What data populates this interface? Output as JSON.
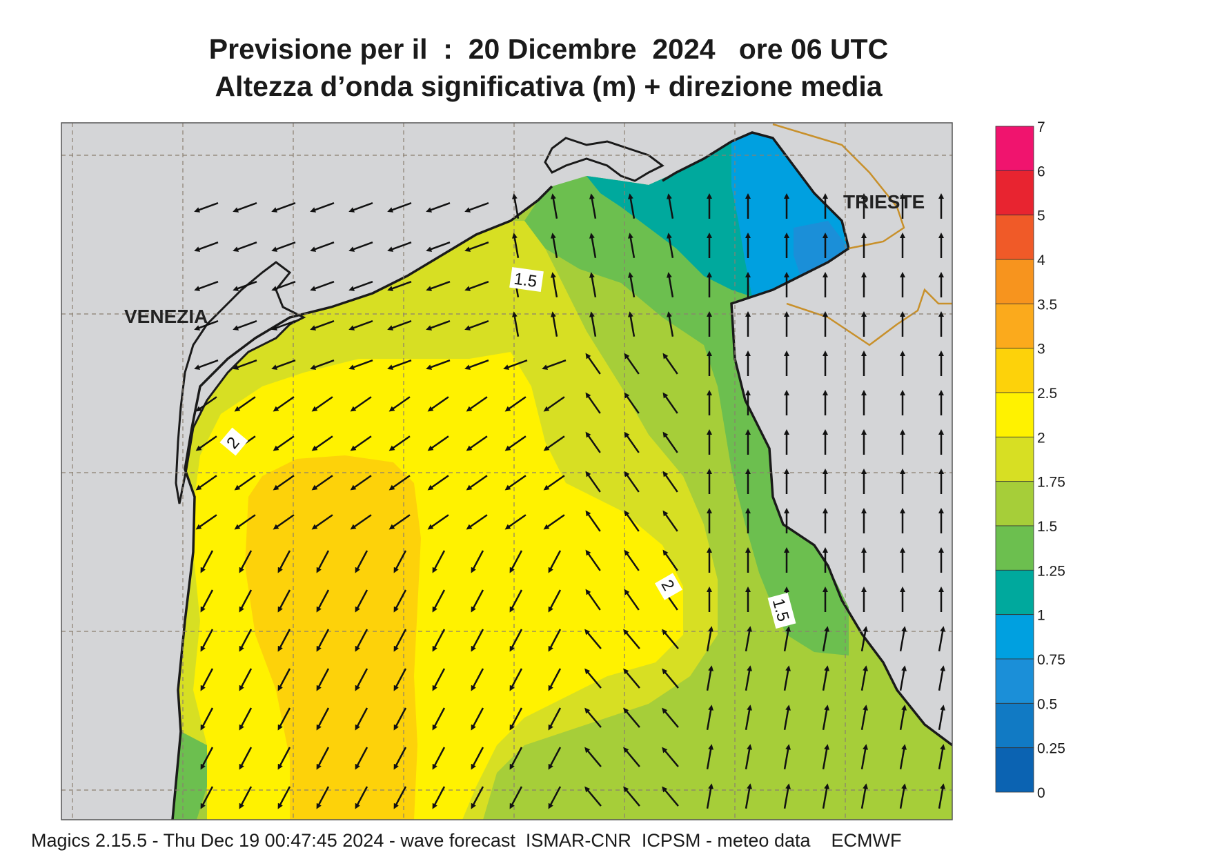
{
  "title": {
    "line1": "Previsione per il  :  20 Dicembre  2024   ore 06 UTC",
    "line2": "Altezza d’onda significativa (m) + direzione media"
  },
  "map": {
    "cities": [
      {
        "name": "VENEZIA"
      },
      {
        "name": "TRIESTE"
      }
    ],
    "contour_labels": [
      "1.5",
      "2",
      "2",
      "1.5"
    ],
    "land_color": "#d4d5d7",
    "coast_color": "#1a1a1a",
    "border_color": "#c8902a"
  },
  "colorbar": {
    "levels": [
      "7",
      "6",
      "5",
      "4",
      "3.5",
      "3",
      "2.5",
      "2",
      "1.75",
      "1.5",
      "1.25",
      "1",
      "0.75",
      "0.5",
      "0.25",
      "0"
    ],
    "colors": [
      "#f0146e",
      "#e82430",
      "#f05a28",
      "#f7941e",
      "#fbaa1c",
      "#fdd20a",
      "#fff200",
      "#d7df23",
      "#a6ce39",
      "#6cbf4f",
      "#00a99d",
      "#00a0e0",
      "#1b8fd8",
      "#117ac4",
      "#0b63b2"
    ]
  },
  "footer": "Magics 2.15.5 - Thu Dec 19 00:47:45 2024 - wave forecast  ISMAR-CNR  ICPSM - meteo data    ECMWF"
}
